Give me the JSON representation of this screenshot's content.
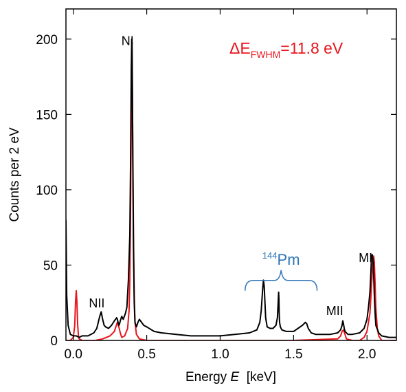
{
  "chart_data": {
    "type": "line",
    "title": "",
    "xlabel": {
      "prefix": "Energy ",
      "symbol": "E",
      "unit": "  [keV]"
    },
    "ylabel": "Counts per  2 eV",
    "xlim": [
      -0.05,
      2.2
    ],
    "ylim": [
      0,
      220
    ],
    "xticks": [
      0.0,
      0.5,
      1.0,
      1.5,
      2.0
    ],
    "xtick_labels": [
      "0.0",
      "0.5",
      "1.0",
      "1.5",
      "2.0"
    ],
    "yticks": [
      0,
      50,
      100,
      150,
      200
    ],
    "ytick_labels": [
      "0",
      "50",
      "100",
      "150",
      "200"
    ],
    "grid": false,
    "resolution_label": {
      "delta": "ΔE",
      "subscript": "FWHM",
      "value": "=11.8 eV"
    },
    "colors": {
      "measured": "#000000",
      "fit": "#e8141c",
      "pm_label": "#2e75b6"
    },
    "annotations": [
      {
        "text": "NI",
        "x": 0.37,
        "y": 196
      },
      {
        "text": "NII",
        "x": 0.16,
        "y": 22
      },
      {
        "text": "MII",
        "x": 1.78,
        "y": 17
      },
      {
        "text": "MI",
        "x": 1.99,
        "y": 52
      }
    ],
    "pm_group": {
      "superscript": "144",
      "element": "Pm",
      "x_start": 1.17,
      "x_end": 1.66,
      "y": 43
    },
    "series": [
      {
        "role": "measured",
        "x": [
          -0.05,
          -0.045,
          -0.035,
          -0.02,
          0.0,
          0.02,
          0.04,
          0.06,
          0.08,
          0.1,
          0.12,
          0.14,
          0.16,
          0.18,
          0.19,
          0.2,
          0.21,
          0.22,
          0.24,
          0.26,
          0.28,
          0.295,
          0.3,
          0.305,
          0.31,
          0.315,
          0.32,
          0.33,
          0.34,
          0.355,
          0.365,
          0.375,
          0.385,
          0.39,
          0.395,
          0.398,
          0.4,
          0.402,
          0.405,
          0.41,
          0.415,
          0.42,
          0.43,
          0.44,
          0.45,
          0.48,
          0.5,
          0.55,
          0.6,
          0.7,
          0.8,
          0.9,
          1.0,
          1.1,
          1.2,
          1.25,
          1.27,
          1.28,
          1.29,
          1.295,
          1.3,
          1.305,
          1.31,
          1.32,
          1.34,
          1.36,
          1.38,
          1.39,
          1.395,
          1.398,
          1.4,
          1.402,
          1.405,
          1.41,
          1.42,
          1.45,
          1.5,
          1.53,
          1.56,
          1.57,
          1.58,
          1.59,
          1.6,
          1.62,
          1.65,
          1.7,
          1.75,
          1.8,
          1.82,
          1.83,
          1.835,
          1.84,
          1.845,
          1.85,
          1.87,
          1.9,
          1.95,
          1.98,
          2.0,
          2.01,
          2.02,
          2.025,
          2.03,
          2.035,
          2.04,
          2.045,
          2.05,
          2.055,
          2.06,
          2.08,
          2.1,
          2.15,
          2.2
        ],
        "y": [
          80,
          30,
          10,
          4,
          3,
          3,
          2,
          3,
          3,
          3,
          4,
          5,
          8,
          16,
          19,
          14,
          10,
          9,
          8,
          10,
          13,
          15,
          14,
          12,
          10,
          11,
          13,
          16,
          14,
          18,
          22,
          40,
          70,
          120,
          180,
          200,
          198,
          175,
          120,
          60,
          25,
          12,
          9,
          12,
          14,
          10,
          9,
          6,
          5,
          4,
          3,
          3,
          3,
          4,
          5,
          7,
          12,
          20,
          35,
          40,
          36,
          25,
          15,
          9,
          8,
          8,
          10,
          15,
          25,
          32,
          28,
          18,
          12,
          9,
          7,
          6,
          6,
          8,
          10,
          11,
          12,
          11,
          8,
          5,
          4,
          4,
          4,
          5,
          7,
          10,
          13,
          11,
          8,
          6,
          4,
          4,
          5,
          8,
          14,
          22,
          32,
          42,
          55,
          57,
          54,
          44,
          30,
          18,
          10,
          5,
          3,
          2,
          2
        ]
      },
      {
        "role": "fit",
        "x": [
          -0.05,
          -0.02,
          0.0,
          0.01,
          0.015,
          0.02,
          0.025,
          0.03,
          0.035,
          0.04,
          0.06,
          0.1,
          0.15,
          0.2,
          0.25,
          0.28,
          0.3,
          0.31,
          0.32,
          0.33,
          0.35,
          0.37,
          0.38,
          0.385,
          0.39,
          0.395,
          0.398,
          0.4,
          0.402,
          0.405,
          0.41,
          0.415,
          0.42,
          0.43,
          0.45,
          0.5,
          0.8,
          1.0,
          1.5,
          1.8,
          1.82,
          1.83,
          1.84,
          1.85,
          1.86,
          1.9,
          1.95,
          1.98,
          2.0,
          2.02,
          2.03,
          2.04,
          2.045,
          2.05,
          2.055,
          2.06,
          2.07,
          2.08,
          2.1,
          2.2
        ],
        "y": [
          0,
          0,
          2,
          10,
          25,
          33,
          25,
          10,
          3,
          1,
          0,
          0,
          0,
          1,
          3,
          6,
          12,
          9,
          5,
          2,
          3,
          8,
          20,
          40,
          90,
          150,
          185,
          190,
          170,
          130,
          70,
          30,
          12,
          4,
          1,
          0,
          0,
          0,
          0,
          1,
          3,
          6,
          7,
          4,
          1,
          0,
          0,
          2,
          6,
          18,
          35,
          52,
          56,
          52,
          38,
          22,
          8,
          3,
          0,
          0
        ]
      }
    ]
  }
}
